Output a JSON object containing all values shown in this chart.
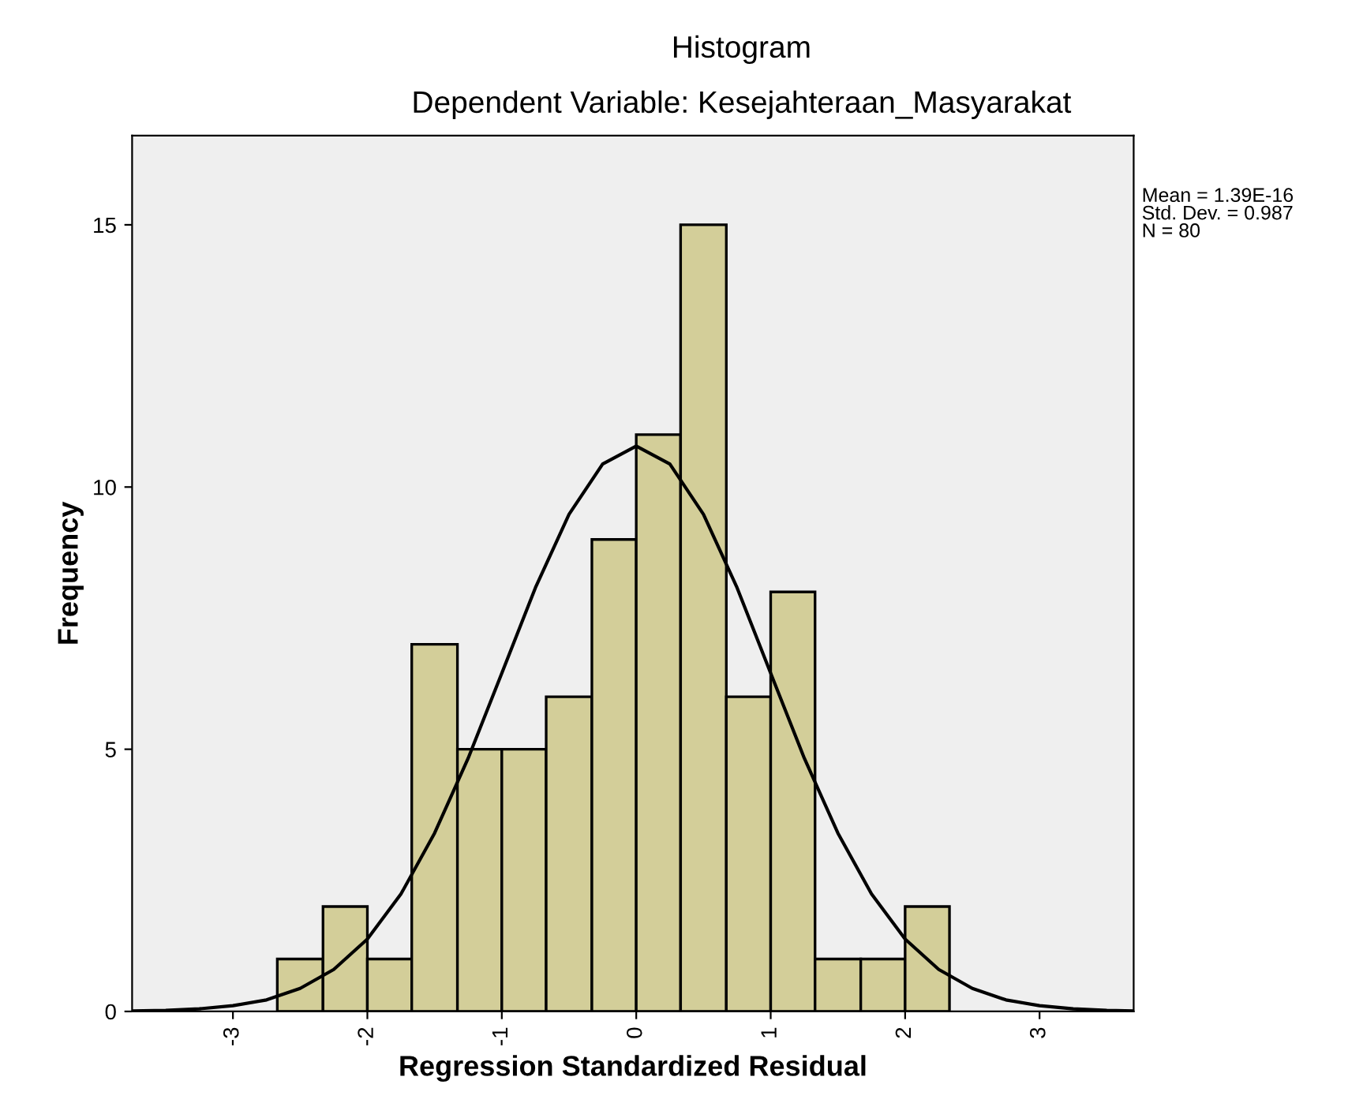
{
  "chart_data": {
    "type": "histogram",
    "title": "Histogram",
    "subtitle": "Dependent Variable: Kesejahteraan_Masyarakat",
    "xlabel": "Regression Standardized Residual",
    "ylabel": "Frequency",
    "bins": [
      -2.67,
      -2.33,
      -2.0,
      -1.67,
      -1.33,
      -1.0,
      -0.67,
      -0.33,
      0.0,
      0.33,
      0.67,
      1.0,
      1.33,
      1.67,
      2.0,
      2.33
    ],
    "values": [
      1,
      2,
      1,
      7,
      5,
      5,
      6,
      9,
      11,
      15,
      6,
      8,
      1,
      1,
      2
    ],
    "color": "#d3ce99",
    "series": [
      {
        "type": "line",
        "color": "#000000",
        "x": [
          -3.75,
          -3.5,
          -3.25,
          -3.0,
          -2.75,
          -2.5,
          -2.25,
          -2.0,
          -1.75,
          -1.5,
          -1.25,
          -1.0,
          -0.75,
          -0.5,
          -0.25,
          0.0,
          0.25,
          0.5,
          0.75,
          1.0,
          1.25,
          1.5,
          1.75,
          2.0,
          2.25,
          2.5,
          2.75,
          3.0,
          3.25,
          3.5,
          3.7
        ],
        "values": [
          0.01,
          0.02,
          0.05,
          0.11,
          0.22,
          0.44,
          0.8,
          1.38,
          2.24,
          3.4,
          4.83,
          6.45,
          8.08,
          9.48,
          10.44,
          10.78,
          10.44,
          9.48,
          8.08,
          6.45,
          4.83,
          3.4,
          2.24,
          1.38,
          0.8,
          0.44,
          0.22,
          0.11,
          0.05,
          0.02,
          0.01
        ]
      }
    ],
    "xlim": [
      -3.75,
      3.7
    ],
    "xticks": [
      -3,
      -2,
      -1,
      0,
      1,
      2,
      3
    ],
    "ylim": [
      0,
      16.7
    ],
    "yticks": [
      0,
      5,
      10,
      15
    ],
    "annotations": [
      "Mean = 1.39E-16",
      "Std. Dev. = 0.987",
      "N = 80"
    ],
    "grid": false,
    "legend": false
  }
}
